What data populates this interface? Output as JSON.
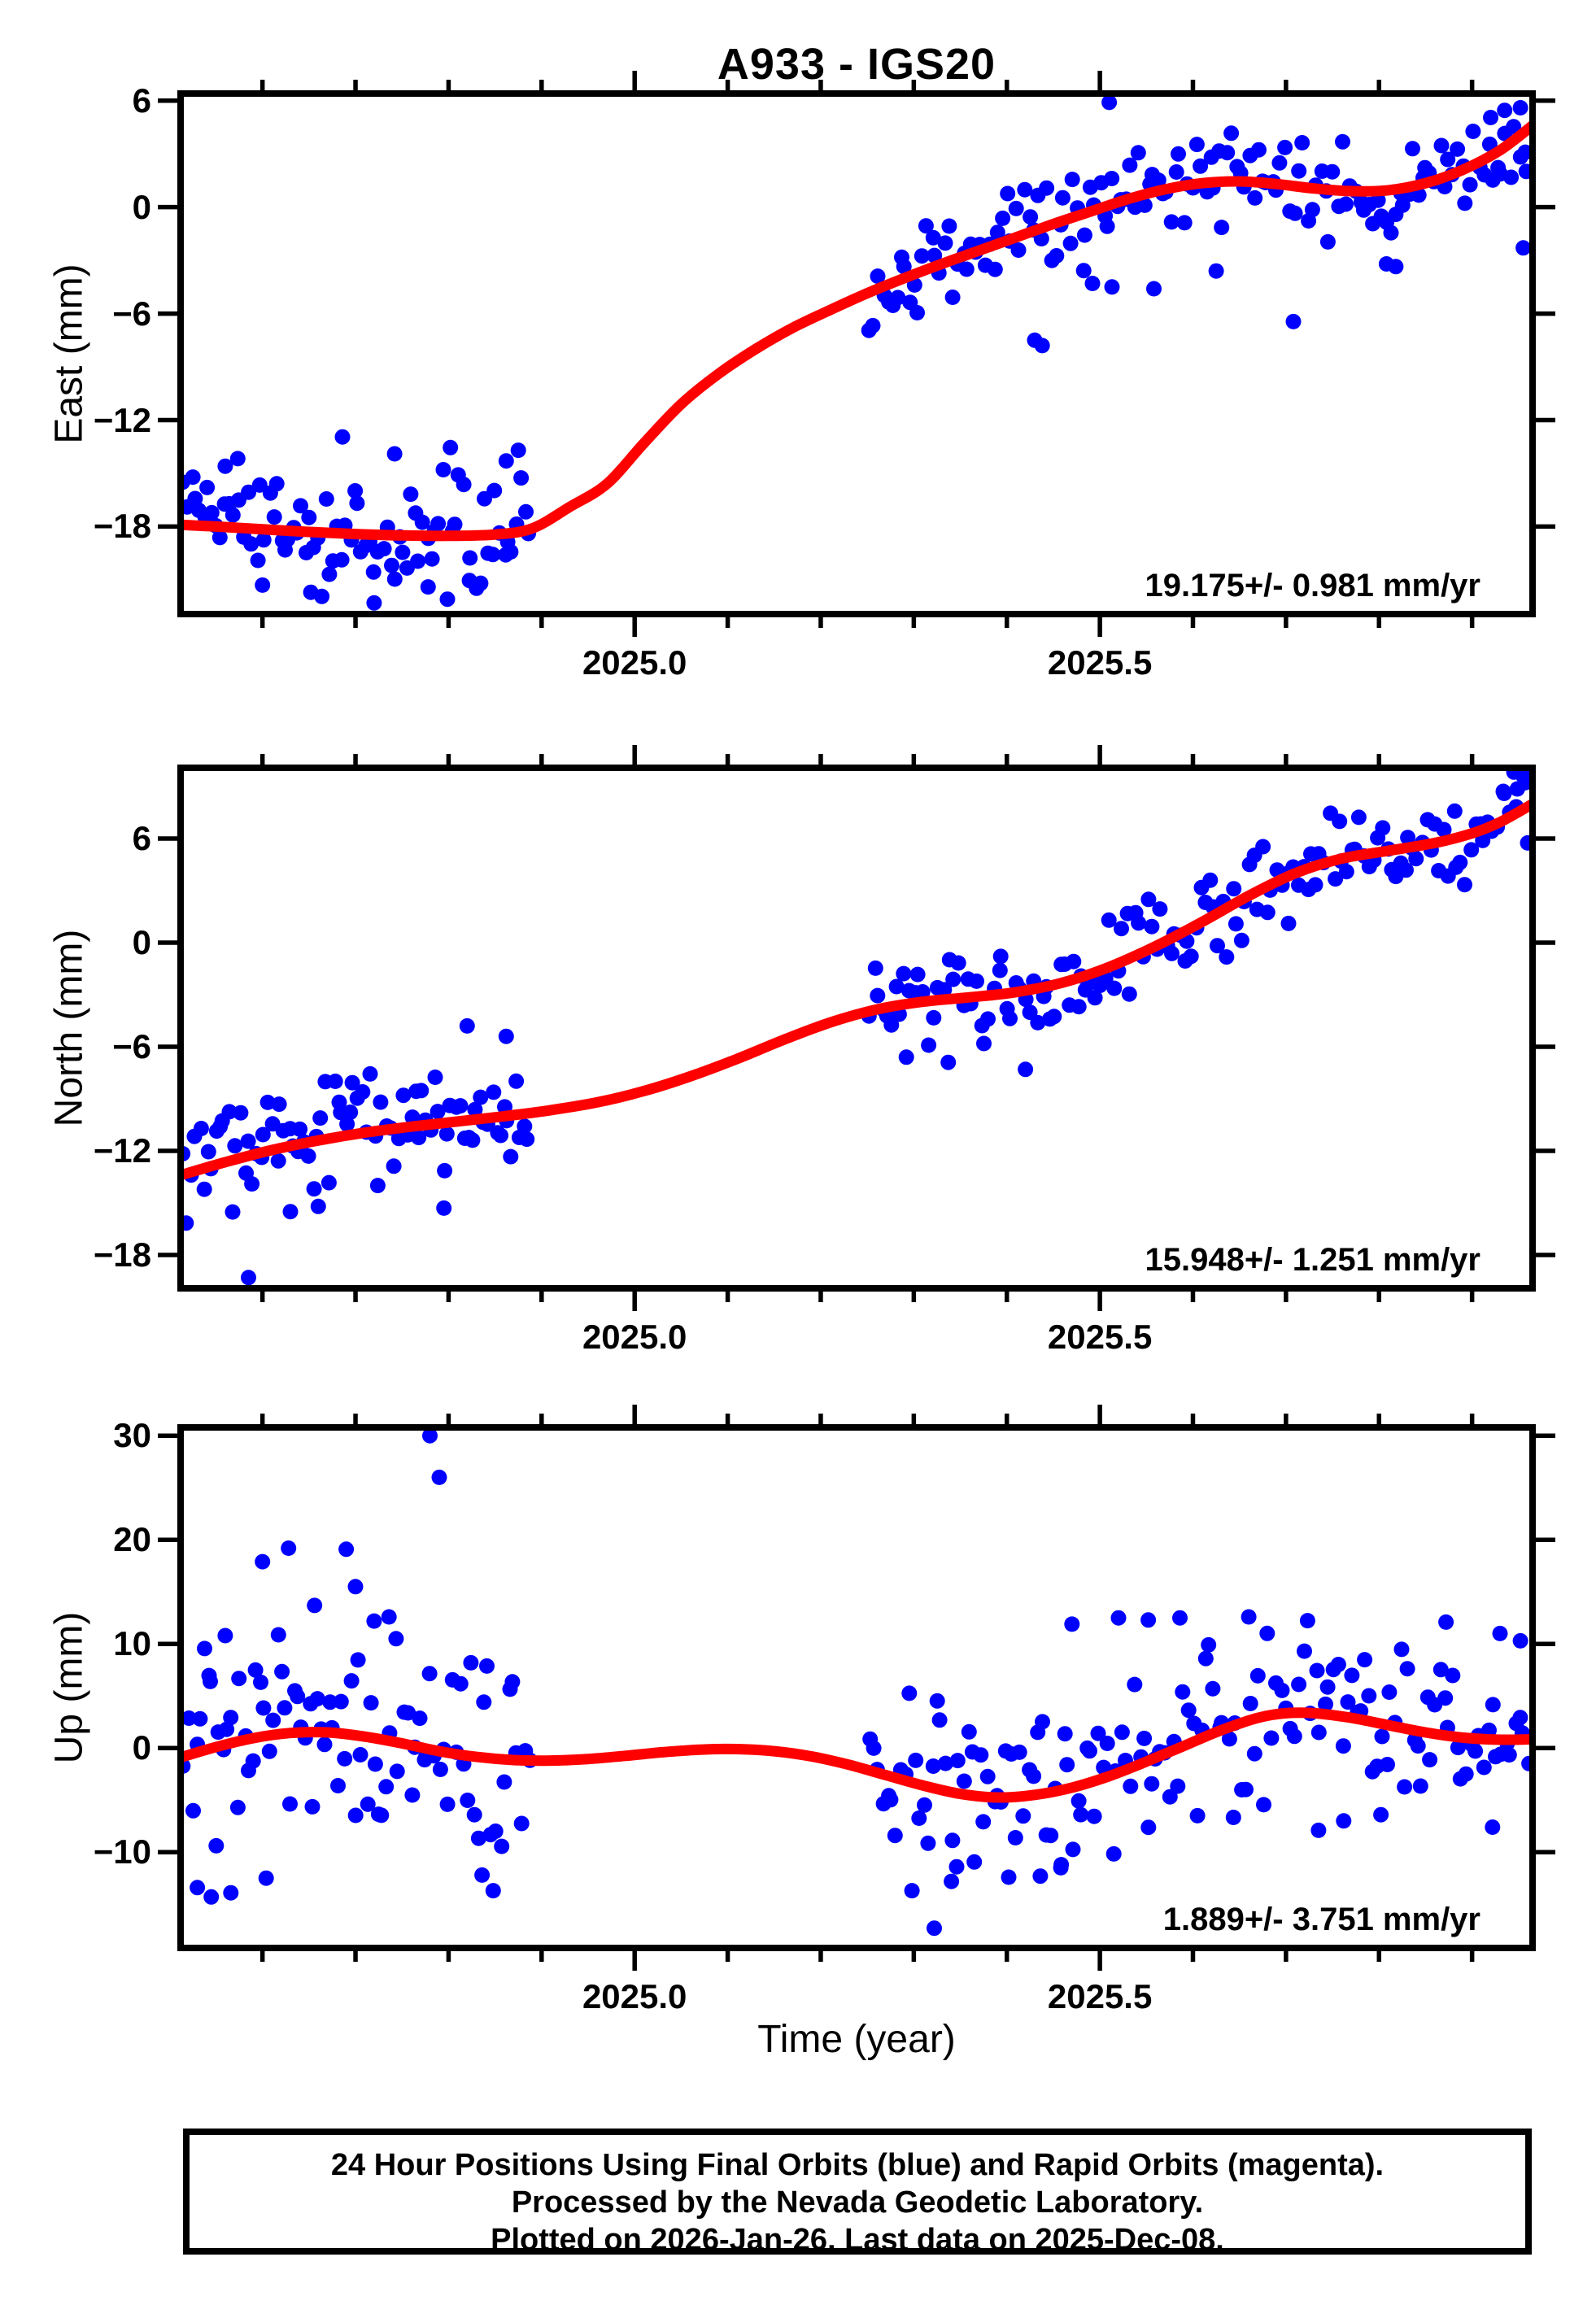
{
  "page": {
    "background": "#ffffff"
  },
  "colors": {
    "points": "#0000ff",
    "trend": "#ff0000",
    "axis": "#000000",
    "text": "#000000"
  },
  "title": "A933 - IGS20",
  "x_axis_label": "Time (year)",
  "caption": {
    "line1": "24 Hour Positions Using Final Orbits (blue) and Rapid Orbits (magenta).",
    "line2": "Processed by the Nevada Geodetic Laboratory.",
    "line3": "Plotted on 2026-Jan-26. Last data on 2025-Dec-08."
  },
  "chart_data": {
    "type": "scatter",
    "title": "A933 - IGS20",
    "station": "A933",
    "reference_frame": "IGS20",
    "x_axis": {
      "label": "Time (year)",
      "min": 2024.512,
      "max": 2025.965,
      "major_ticks": [
        2025.0,
        2025.5
      ],
      "major_tick_labels": [
        "2025.0",
        "2025.5"
      ],
      "minor_tick_step": 0.1,
      "minor_tick_start": 2024.6,
      "minor_tick_end": 2025.9,
      "data_gap": [
        2024.886,
        2025.253
      ]
    },
    "panels": [
      {
        "id": "east",
        "y_label": "East (mm)",
        "rate_label": "19.175+/- 0.981 mm/yr",
        "rate_mm_per_yr": 19.175,
        "rate_sigma": 0.981,
        "y_min": -22.93,
        "y_max": 6.4,
        "y_ticks": [
          6,
          0,
          -6,
          -12,
          -18
        ],
        "y_tick_labels": [
          "6",
          "0",
          "−6",
          "−12",
          "−18"
        ],
        "trend_mm": [
          [
            2024.512,
            -17.9
          ],
          [
            2024.55,
            -18.0
          ],
          [
            2024.6,
            -18.15
          ],
          [
            2024.65,
            -18.3
          ],
          [
            2024.7,
            -18.42
          ],
          [
            2024.75,
            -18.5
          ],
          [
            2024.8,
            -18.52
          ],
          [
            2024.85,
            -18.45
          ],
          [
            2024.89,
            -18.1
          ],
          [
            2024.93,
            -16.9
          ],
          [
            2024.97,
            -15.6
          ],
          [
            2025.01,
            -13.3
          ],
          [
            2025.05,
            -11.1
          ],
          [
            2025.09,
            -9.4
          ],
          [
            2025.13,
            -8.0
          ],
          [
            2025.17,
            -6.8
          ],
          [
            2025.21,
            -5.8
          ],
          [
            2025.25,
            -4.85
          ],
          [
            2025.29,
            -4.0
          ],
          [
            2025.33,
            -3.2
          ],
          [
            2025.37,
            -2.45
          ],
          [
            2025.41,
            -1.7
          ],
          [
            2025.45,
            -0.95
          ],
          [
            2025.49,
            -0.25
          ],
          [
            2025.53,
            0.45
          ],
          [
            2025.57,
            1.0
          ],
          [
            2025.61,
            1.35
          ],
          [
            2025.65,
            1.45
          ],
          [
            2025.69,
            1.3
          ],
          [
            2025.73,
            1.05
          ],
          [
            2025.77,
            0.9
          ],
          [
            2025.81,
            0.95
          ],
          [
            2025.85,
            1.35
          ],
          [
            2025.89,
            2.1
          ],
          [
            2025.93,
            3.2
          ],
          [
            2025.965,
            4.6
          ]
        ],
        "outlier_points_mm": [
          [
            2024.56,
            -14.6
          ],
          [
            2024.6,
            -21.3
          ],
          [
            2024.652,
            -21.7
          ],
          [
            2024.686,
            -12.95
          ],
          [
            2024.72,
            -22.3
          ],
          [
            2024.742,
            -13.9
          ],
          [
            2024.778,
            -21.4
          ],
          [
            2024.802,
            -13.55
          ],
          [
            2024.862,
            -14.3
          ],
          [
            2024.875,
            -13.7
          ],
          [
            2025.43,
            -7.5
          ],
          [
            2025.438,
            -7.8
          ],
          [
            2025.492,
            -4.3
          ],
          [
            2025.51,
            5.9
          ],
          [
            2025.513,
            -4.5
          ],
          [
            2025.558,
            -4.6
          ],
          [
            2025.625,
            -3.6
          ],
          [
            2025.708,
            -6.45
          ],
          [
            2025.808,
            -3.2
          ],
          [
            2025.818,
            -3.35
          ],
          [
            2025.92,
            5.05
          ],
          [
            2025.935,
            5.45
          ],
          [
            2025.952,
            5.6
          ],
          [
            2025.955,
            -2.3
          ]
        ],
        "scatter_model": {
          "seed": 101,
          "x_jitter": 0.002,
          "segments": [
            {
              "x_start": 2024.515,
              "x_end": 2024.886,
              "n": 86,
              "sigma": 1.9,
              "clip": 4.0
            },
            {
              "x_start": 2025.253,
              "x_end": 2025.96,
              "n": 150,
              "sigma": 1.55,
              "clip": 3.2
            }
          ]
        }
      },
      {
        "id": "north",
        "y_label": "North (mm)",
        "rate_label": "15.948+/- 1.251 mm/yr",
        "rate_mm_per_yr": 15.948,
        "rate_sigma": 1.251,
        "y_min": -19.92,
        "y_max": 10.08,
        "y_ticks": [
          6,
          0,
          -6,
          -12,
          -18
        ],
        "y_tick_labels": [
          "6",
          "0",
          "−6",
          "−12",
          "−18"
        ],
        "trend_mm": [
          [
            2024.512,
            -13.4
          ],
          [
            2024.56,
            -12.65
          ],
          [
            2024.61,
            -11.95
          ],
          [
            2024.66,
            -11.4
          ],
          [
            2024.71,
            -10.95
          ],
          [
            2024.76,
            -10.6
          ],
          [
            2024.81,
            -10.3
          ],
          [
            2024.86,
            -10.0
          ],
          [
            2024.91,
            -9.65
          ],
          [
            2024.96,
            -9.2
          ],
          [
            2025.01,
            -8.55
          ],
          [
            2025.06,
            -7.7
          ],
          [
            2025.11,
            -6.7
          ],
          [
            2025.16,
            -5.6
          ],
          [
            2025.21,
            -4.6
          ],
          [
            2025.26,
            -3.85
          ],
          [
            2025.31,
            -3.4
          ],
          [
            2025.36,
            -3.15
          ],
          [
            2025.41,
            -2.85
          ],
          [
            2025.46,
            -2.3
          ],
          [
            2025.51,
            -1.4
          ],
          [
            2025.56,
            -0.2
          ],
          [
            2025.61,
            1.2
          ],
          [
            2025.66,
            2.7
          ],
          [
            2025.71,
            4.0
          ],
          [
            2025.76,
            4.85
          ],
          [
            2025.81,
            5.3
          ],
          [
            2025.86,
            5.75
          ],
          [
            2025.9,
            6.3
          ],
          [
            2025.93,
            6.95
          ],
          [
            2025.965,
            8.0
          ]
        ],
        "outlier_points_mm": [
          [
            2024.585,
            -19.3
          ],
          [
            2024.63,
            -15.5
          ],
          [
            2024.66,
            -15.2
          ],
          [
            2024.795,
            -15.3
          ],
          [
            2024.82,
            -4.8
          ],
          [
            2024.862,
            -5.4
          ],
          [
            2025.292,
            -6.6
          ],
          [
            2025.337,
            -6.9
          ],
          [
            2025.42,
            -7.3
          ],
          [
            2025.945,
            9.9
          ],
          [
            2025.955,
            9.6
          ]
        ],
        "scatter_model": {
          "seed": 202,
          "x_jitter": 0.002,
          "segments": [
            {
              "x_start": 2024.515,
              "x_end": 2024.886,
              "n": 86,
              "sigma": 1.75,
              "clip": 3.6
            },
            {
              "x_start": 2025.253,
              "x_end": 2025.96,
              "n": 150,
              "sigma": 1.5,
              "clip": 3.0
            }
          ]
        }
      },
      {
        "id": "up",
        "y_label": "Up (mm)",
        "rate_label": "1.889+/- 3.751 mm/yr",
        "rate_mm_per_yr": 1.889,
        "rate_sigma": 3.751,
        "y_min": -19.2,
        "y_max": 30.8,
        "y_ticks": [
          30,
          20,
          10,
          0,
          -10
        ],
        "y_tick_labels": [
          "30",
          "20",
          "10",
          "0",
          "−10"
        ],
        "trend_mm": [
          [
            2024.512,
            -0.9
          ],
          [
            2024.55,
            0.1
          ],
          [
            2024.59,
            0.95
          ],
          [
            2024.63,
            1.45
          ],
          [
            2024.67,
            1.5
          ],
          [
            2024.71,
            1.1
          ],
          [
            2024.75,
            0.45
          ],
          [
            2024.79,
            -0.3
          ],
          [
            2024.83,
            -0.85
          ],
          [
            2024.87,
            -1.15
          ],
          [
            2024.91,
            -1.2
          ],
          [
            2024.95,
            -1.05
          ],
          [
            2024.99,
            -0.75
          ],
          [
            2025.03,
            -0.4
          ],
          [
            2025.07,
            -0.15
          ],
          [
            2025.11,
            -0.1
          ],
          [
            2025.15,
            -0.3
          ],
          [
            2025.19,
            -0.8
          ],
          [
            2025.23,
            -1.6
          ],
          [
            2025.27,
            -2.6
          ],
          [
            2025.31,
            -3.6
          ],
          [
            2025.35,
            -4.4
          ],
          [
            2025.39,
            -4.75
          ],
          [
            2025.43,
            -4.5
          ],
          [
            2025.47,
            -3.8
          ],
          [
            2025.51,
            -2.7
          ],
          [
            2025.55,
            -1.3
          ],
          [
            2025.59,
            0.2
          ],
          [
            2025.63,
            1.7
          ],
          [
            2025.67,
            2.9
          ],
          [
            2025.7,
            3.35
          ],
          [
            2025.73,
            3.35
          ],
          [
            2025.77,
            2.9
          ],
          [
            2025.81,
            2.2
          ],
          [
            2025.85,
            1.5
          ],
          [
            2025.89,
            1.0
          ],
          [
            2025.93,
            0.8
          ],
          [
            2025.965,
            0.85
          ]
        ],
        "outlier_points_mm": [
          [
            2024.53,
            -13.4
          ],
          [
            2024.545,
            -14.3
          ],
          [
            2024.56,
            10.8
          ],
          [
            2024.566,
            -13.9
          ],
          [
            2024.6,
            17.9
          ],
          [
            2024.604,
            -12.5
          ],
          [
            2024.628,
            19.2
          ],
          [
            2024.656,
            13.7
          ],
          [
            2024.69,
            19.1
          ],
          [
            2024.7,
            15.5
          ],
          [
            2024.72,
            12.2
          ],
          [
            2024.736,
            12.6
          ],
          [
            2024.78,
            30.0
          ],
          [
            2024.79,
            26.0
          ],
          [
            2024.836,
            -12.2
          ],
          [
            2024.848,
            -13.7
          ],
          [
            2025.298,
            -13.7
          ],
          [
            2025.322,
            -17.3
          ],
          [
            2025.346,
            -11.4
          ],
          [
            2025.402,
            -12.4
          ],
          [
            2025.436,
            -12.3
          ],
          [
            2025.458,
            -11.5
          ],
          [
            2025.47,
            11.9
          ],
          [
            2025.52,
            12.5
          ],
          [
            2025.552,
            12.3
          ],
          [
            2025.586,
            12.5
          ],
          [
            2025.66,
            12.6
          ],
          [
            2025.735,
            -7.9
          ],
          [
            2025.762,
            -7.0
          ],
          [
            2025.802,
            -6.4
          ],
          [
            2025.872,
            12.1
          ],
          [
            2025.922,
            -7.6
          ],
          [
            2025.93,
            11.0
          ],
          [
            2025.952,
            10.3
          ]
        ],
        "scatter_model": {
          "seed": 303,
          "x_jitter": 0.002,
          "segments": [
            {
              "x_start": 2024.515,
              "x_end": 2024.886,
              "n": 86,
              "sigma": 5.4,
              "clip": 10.0
            },
            {
              "x_start": 2025.253,
              "x_end": 2025.96,
              "n": 150,
              "sigma": 4.4,
              "clip": 9.0
            }
          ]
        }
      }
    ]
  }
}
